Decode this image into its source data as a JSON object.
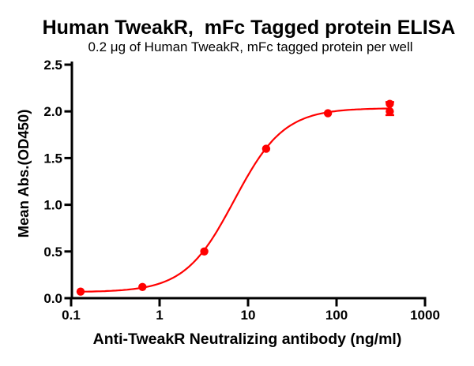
{
  "chart_data": {
    "type": "scatter",
    "title": "Human TweakR,  mFc Tagged protein ELISA",
    "subtitle": "0.2 μg of Human TweakR, mFc tagged protein per well",
    "xlabel": "Anti-TweakR Neutralizing antibody (ng/ml)",
    "ylabel": "Mean Abs.(OD450)",
    "x_scale": "log10",
    "xlim": [
      0.1,
      1000
    ],
    "ylim": [
      0.0,
      2.5
    ],
    "x_ticks": [
      "0.1",
      "1",
      "10",
      "100",
      "1000"
    ],
    "y_ticks": [
      "0.0",
      "0.5",
      "1.0",
      "1.5",
      "2.0",
      "2.5"
    ],
    "grid": false,
    "legend": "none",
    "axis_color": "#000000",
    "series": [
      {
        "name": "Anti-TweakR Neutralizing antibody",
        "marker": "circle",
        "color": "#FF0000",
        "points": [
          {
            "x": 0.128,
            "y": 0.07
          },
          {
            "x": 0.64,
            "y": 0.12
          },
          {
            "x": 3.2,
            "y": 0.5
          },
          {
            "x": 16,
            "y": 1.6
          },
          {
            "x": 80,
            "y": 1.98
          },
          {
            "x": 400,
            "y": 2.0
          },
          {
            "x": 400,
            "y": 2.08
          }
        ],
        "error_bars": [
          {
            "x": 400,
            "y_low": 1.96,
            "y_high": 2.1
          }
        ],
        "fit_curve": {
          "model": "4PL",
          "bottom": 0.065,
          "top": 2.035,
          "ec50_ng_ml": 7.0,
          "hill": 1.55,
          "x_start": 0.128,
          "x_end": 400
        }
      }
    ]
  }
}
